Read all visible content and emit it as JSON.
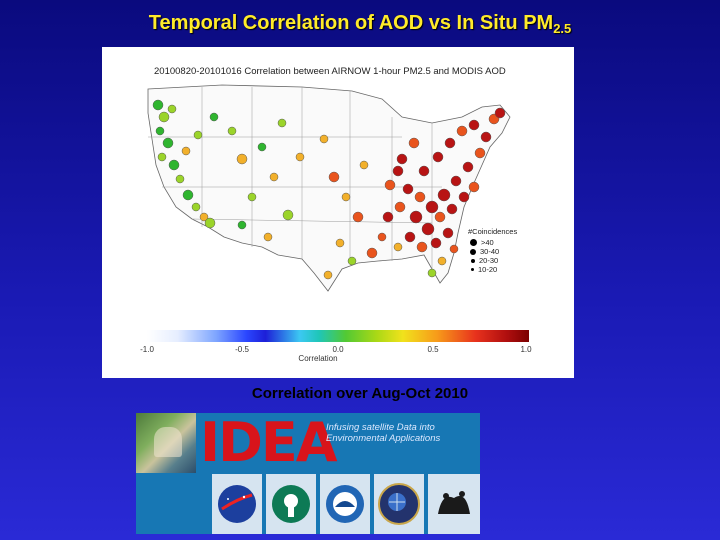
{
  "slide": {
    "title_text": "Temporal Correlation of AOD vs In Situ PM",
    "title_subscript": "2.5",
    "caption": "Correlation over Aug-Oct 2010"
  },
  "map": {
    "header": "20100820-20101016 Correlation between AIRNOW 1-hour PM2.5 and MODIS AOD",
    "legend_title": "#Coincidences",
    "legend_entries": [
      ">40",
      "30-40",
      "20-30",
      "10-20"
    ],
    "colorbar_ticks": [
      "-1.0",
      "-0.5",
      "0.0",
      "0.5",
      "1.0"
    ],
    "colorbar_label": "Correlation",
    "colors": {
      "high": "#b81414",
      "mid_high": "#e9541d",
      "mid": "#f2b02b",
      "low": "#9bd42a",
      "lowest": "#2fb52f",
      "outline": "#555555"
    }
  },
  "banner": {
    "logo": "IDEA",
    "tagline": "Infusing satellite Data into Environmental Applications",
    "partners": [
      {
        "name": "NASA",
        "color": "#1c3f9e"
      },
      {
        "name": "EPA",
        "color": "#0d7a55"
      },
      {
        "name": "NOAA",
        "color": "#2166b5"
      },
      {
        "name": "UMBC NASA GSFC",
        "color": "#23336d"
      },
      {
        "name": "CIMSS",
        "color": "#1a1a1a"
      }
    ]
  }
}
